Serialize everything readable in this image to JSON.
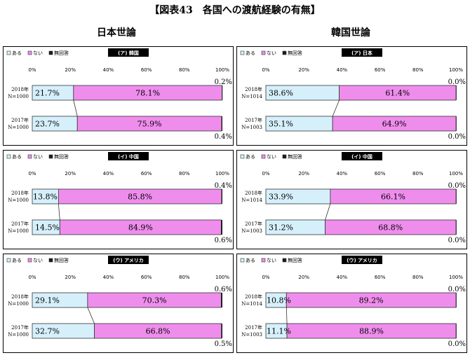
{
  "title": "【図表43　各国への渡航経験の有無】",
  "columns": [
    "日本世論",
    "韓国世論"
  ],
  "legend": [
    "ある",
    "ない",
    "無回答"
  ],
  "colors": {
    "yes": "#d6f0fb",
    "no": "#ef8ded",
    "na": "#1a1a1a",
    "border": "#333333"
  },
  "axis_ticks": [
    "0%",
    "20%",
    "40%",
    "60%",
    "80%",
    "100%"
  ],
  "chart_data": [
    {
      "type": "bar",
      "stacked": true,
      "orientation": "horizontal",
      "title": "(ア) 韓国",
      "survey": "日本世論",
      "categories": [
        "2018年\nN=1000",
        "2017年\nN=1000"
      ],
      "series": [
        {
          "name": "ある",
          "values": [
            21.7,
            23.7
          ]
        },
        {
          "name": "ない",
          "values": [
            78.1,
            75.9
          ]
        },
        {
          "name": "無回答",
          "values": [
            0.2,
            0.4
          ]
        }
      ],
      "xlim": [
        0,
        100
      ]
    },
    {
      "type": "bar",
      "stacked": true,
      "orientation": "horizontal",
      "title": "(ア) 日本",
      "survey": "韓国世論",
      "categories": [
        "2018年\nN=1014",
        "2017年\nN=1003"
      ],
      "series": [
        {
          "name": "ある",
          "values": [
            38.6,
            35.1
          ]
        },
        {
          "name": "ない",
          "values": [
            61.4,
            64.9
          ]
        },
        {
          "name": "無回答",
          "values": [
            0.0,
            0.0
          ]
        }
      ],
      "xlim": [
        0,
        100
      ]
    },
    {
      "type": "bar",
      "stacked": true,
      "orientation": "horizontal",
      "title": "(イ) 中国",
      "survey": "日本世論",
      "categories": [
        "2018年\nN=1000",
        "2017年\nN=1000"
      ],
      "series": [
        {
          "name": "ある",
          "values": [
            13.8,
            14.5
          ]
        },
        {
          "name": "ない",
          "values": [
            85.8,
            84.9
          ]
        },
        {
          "name": "無回答",
          "values": [
            0.4,
            0.6
          ]
        }
      ],
      "xlim": [
        0,
        100
      ]
    },
    {
      "type": "bar",
      "stacked": true,
      "orientation": "horizontal",
      "title": "(イ) 中国",
      "survey": "韓国世論",
      "categories": [
        "2018年\nN=1014",
        "2017年\nN=1003"
      ],
      "series": [
        {
          "name": "ある",
          "values": [
            33.9,
            31.2
          ]
        },
        {
          "name": "ない",
          "values": [
            66.1,
            68.8
          ]
        },
        {
          "name": "無回答",
          "values": [
            0.0,
            0.0
          ]
        }
      ],
      "xlim": [
        0,
        100
      ]
    },
    {
      "type": "bar",
      "stacked": true,
      "orientation": "horizontal",
      "title": "(ウ) アメリカ",
      "survey": "日本世論",
      "categories": [
        "2018年\nN=1000",
        "2017年\nN=1000"
      ],
      "series": [
        {
          "name": "ある",
          "values": [
            29.1,
            32.7
          ]
        },
        {
          "name": "ない",
          "values": [
            70.3,
            66.8
          ]
        },
        {
          "name": "無回答",
          "values": [
            0.6,
            0.5
          ]
        }
      ],
      "xlim": [
        0,
        100
      ]
    },
    {
      "type": "bar",
      "stacked": true,
      "orientation": "horizontal",
      "title": "(ウ) アメリカ",
      "survey": "韓国世論",
      "categories": [
        "2018年\nN=1014",
        "2017年\nN=1003"
      ],
      "series": [
        {
          "name": "ある",
          "values": [
            10.8,
            11.1
          ]
        },
        {
          "name": "ない",
          "values": [
            89.2,
            88.9
          ]
        },
        {
          "name": "無回答",
          "values": [
            0.0,
            0.0
          ]
        }
      ],
      "xlim": [
        0,
        100
      ]
    }
  ]
}
